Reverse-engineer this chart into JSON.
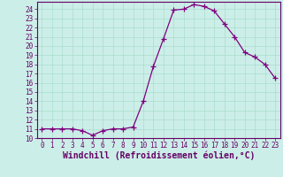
{
  "x": [
    0,
    1,
    2,
    3,
    4,
    5,
    6,
    7,
    8,
    9,
    10,
    11,
    12,
    13,
    14,
    15,
    16,
    17,
    18,
    19,
    20,
    21,
    22,
    23
  ],
  "y": [
    11,
    11,
    11,
    11,
    10.8,
    10.3,
    10.8,
    11,
    11,
    11.2,
    14,
    17.8,
    20.8,
    23.9,
    24.0,
    24.5,
    24.3,
    23.8,
    22.4,
    21.0,
    19.3,
    18.8,
    18.0,
    16.5
  ],
  "line_color": "#800080",
  "marker": "D",
  "marker_size": 2.2,
  "bg_color": "#cceee8",
  "grid_color": "#aaddcc",
  "xlabel": "Windchill (Refroidissement éolien,°C)",
  "xlim": [
    -0.5,
    23.5
  ],
  "ylim": [
    10,
    24.8
  ],
  "yticks": [
    10,
    11,
    12,
    13,
    14,
    15,
    16,
    17,
    18,
    19,
    20,
    21,
    22,
    23,
    24
  ],
  "xticks": [
    0,
    1,
    2,
    3,
    4,
    5,
    6,
    7,
    8,
    9,
    10,
    11,
    12,
    13,
    14,
    15,
    16,
    17,
    18,
    19,
    20,
    21,
    22,
    23
  ],
  "tick_fontsize": 5.5,
  "xlabel_fontsize": 7.0,
  "line_width": 0.9,
  "spine_color": "#660066",
  "text_color": "#660066"
}
